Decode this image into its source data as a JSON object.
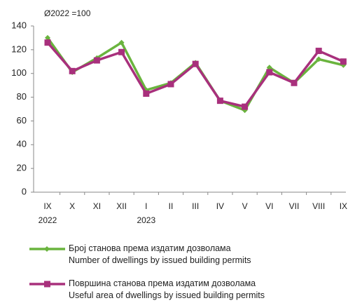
{
  "chart_data": {
    "type": "line",
    "subtitle": "Ø2022 =100",
    "categories": [
      "IX\n2022",
      "X",
      "XI",
      "XII",
      "I\n2023",
      "II",
      "III",
      "IV",
      "V",
      "VI",
      "VII",
      "VIII",
      "IX"
    ],
    "series": [
      {
        "name": "Број станова према издатим дозволама\nNumber of dwellings by issued building permits",
        "color": "#6ab43e",
        "marker": "diamond",
        "values": [
          130,
          101,
          113,
          126,
          86,
          92,
          109,
          77,
          69,
          105,
          92,
          112,
          107
        ]
      },
      {
        "name": "Површина станова према издатим дозволама\nUseful area of dwellings by issued building permits",
        "color": "#a8307c",
        "marker": "square",
        "values": [
          126,
          102,
          111,
          118,
          83,
          91,
          108,
          77,
          72,
          101,
          92,
          119,
          110
        ]
      }
    ],
    "ylim": [
      0,
      140
    ],
    "yticks": [
      0,
      20,
      40,
      60,
      80,
      100,
      120,
      140
    ],
    "grid": false,
    "legend": "bottom"
  }
}
